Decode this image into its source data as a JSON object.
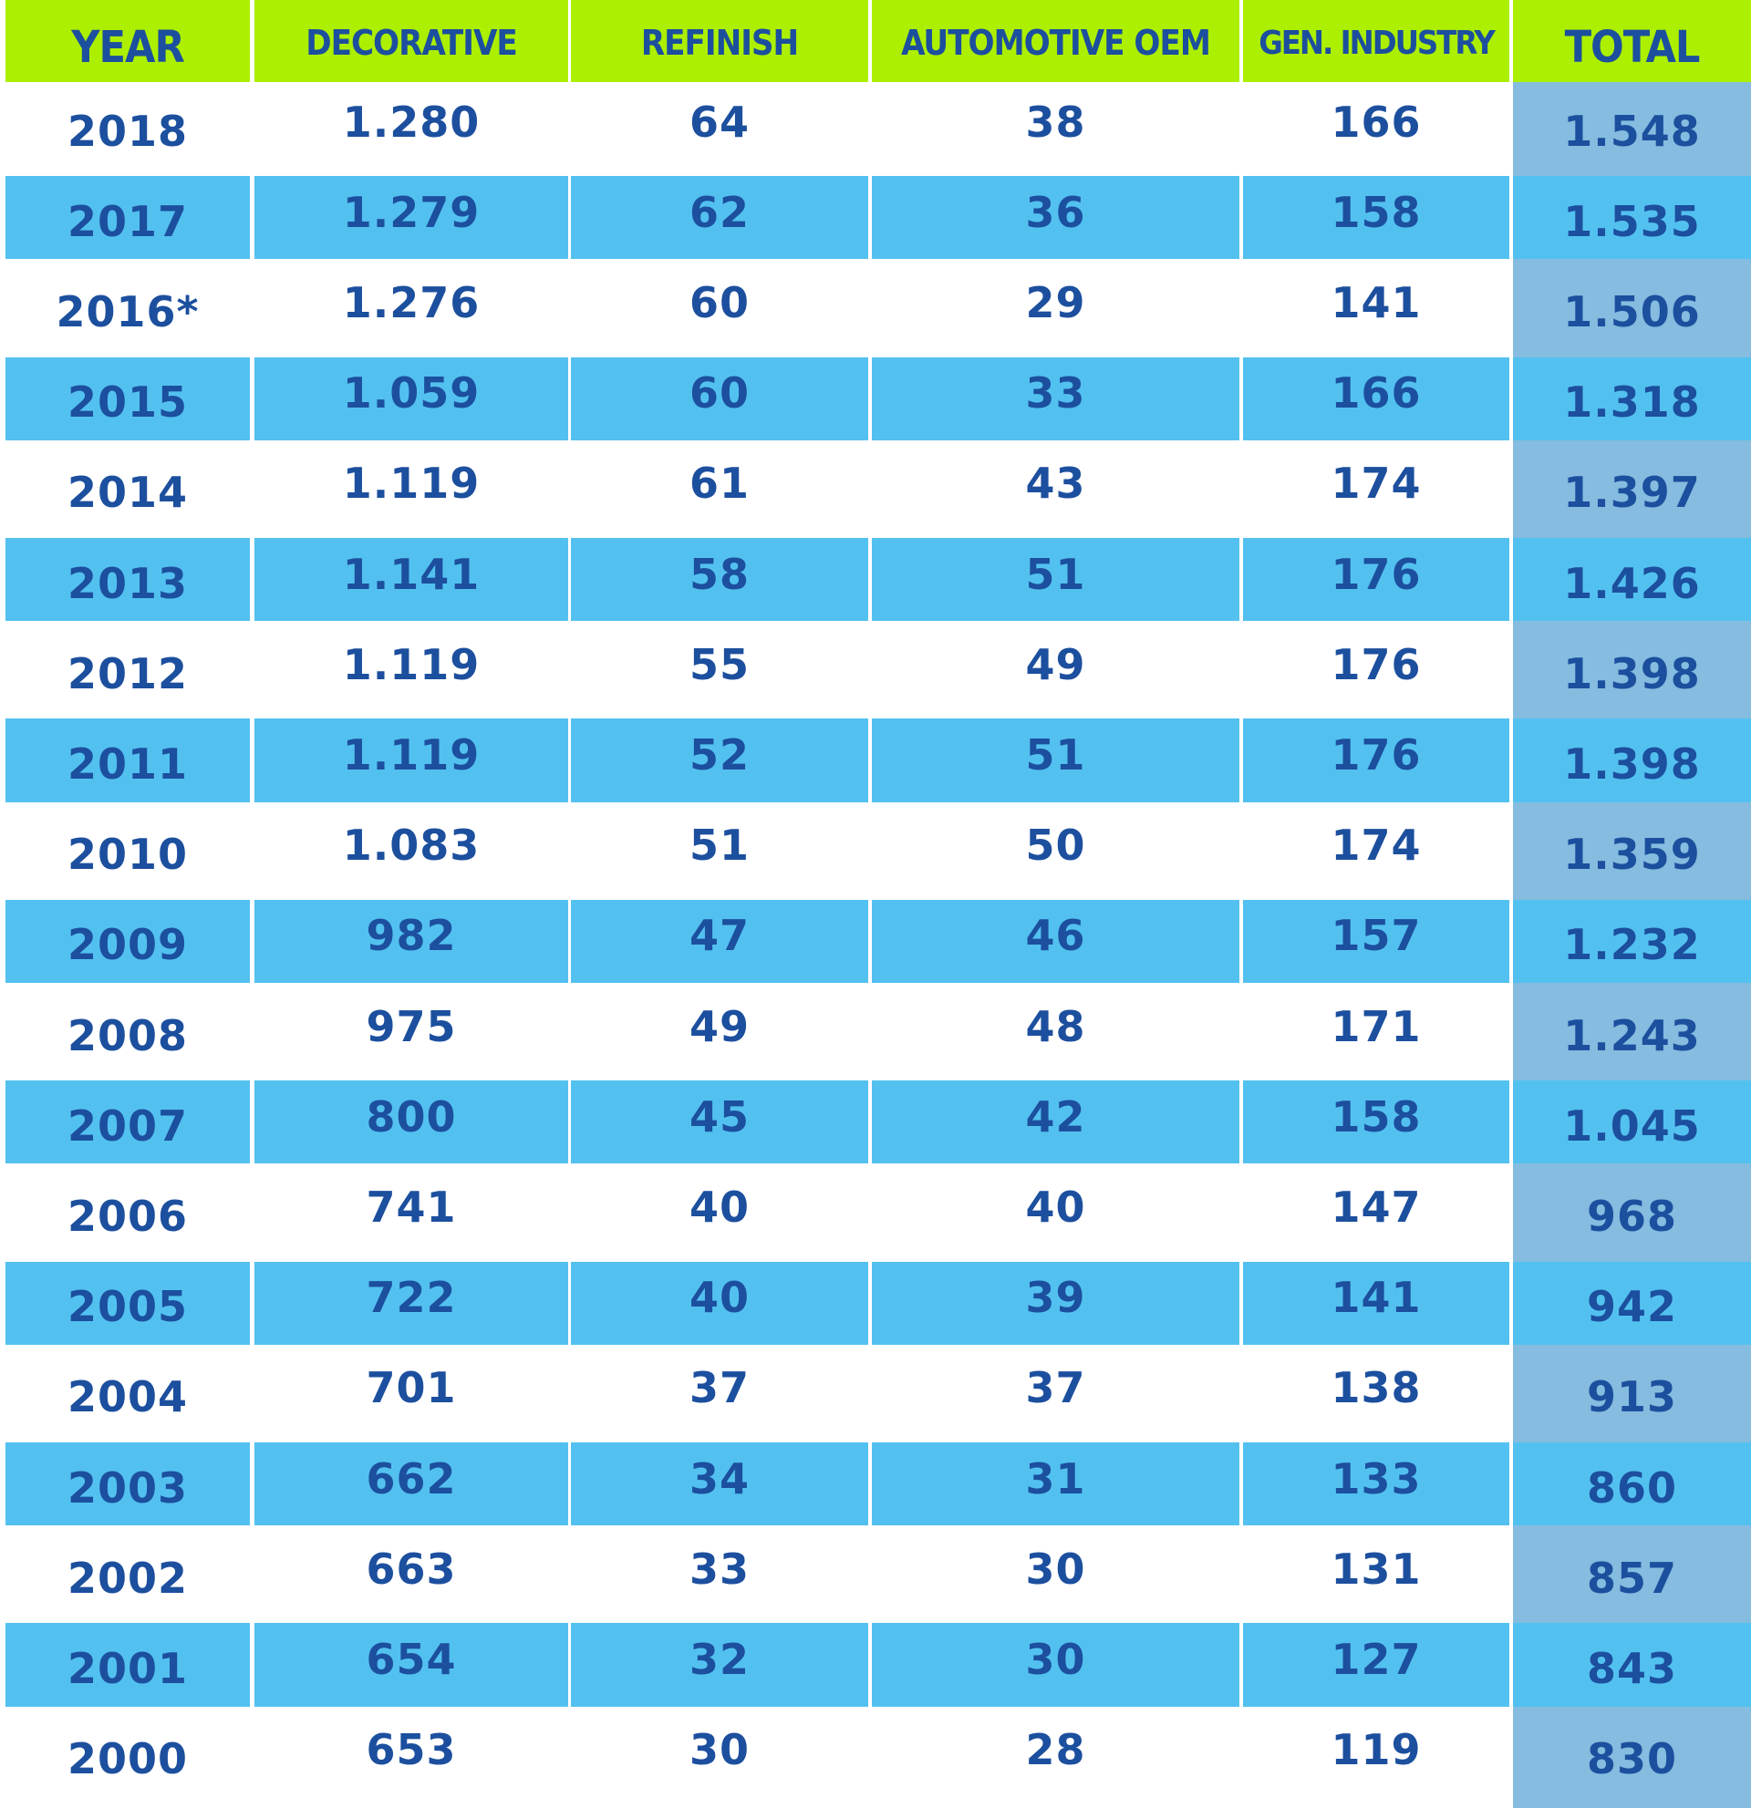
{
  "chart_data": {
    "type": "table",
    "columns": [
      "YEAR",
      "DECORATIVE",
      "REFINISH",
      "AUTOMOTIVE OEM",
      "GEN. INDUSTRY",
      "TOTAL"
    ],
    "rows": [
      [
        "2018",
        "1.280",
        "64",
        "38",
        "166",
        "1.548"
      ],
      [
        "2017",
        "1.279",
        "62",
        "36",
        "158",
        "1.535"
      ],
      [
        "2016*",
        "1.276",
        "60",
        "29",
        "141",
        "1.506"
      ],
      [
        "2015",
        "1.059",
        "60",
        "33",
        "166",
        "1.318"
      ],
      [
        "2014",
        "1.119",
        "61",
        "43",
        "174",
        "1.397"
      ],
      [
        "2013",
        "1.141",
        "58",
        "51",
        "176",
        "1.426"
      ],
      [
        "2012",
        "1.119",
        "55",
        "49",
        "176",
        "1.398"
      ],
      [
        "2011",
        "1.119",
        "52",
        "51",
        "176",
        "1.398"
      ],
      [
        "2010",
        "1.083",
        "51",
        "50",
        "174",
        "1.359"
      ],
      [
        "2009",
        "982",
        "47",
        "46",
        "157",
        "1.232"
      ],
      [
        "2008",
        "975",
        "49",
        "48",
        "171",
        "1.243"
      ],
      [
        "2007",
        "800",
        "45",
        "42",
        "158",
        "1.045"
      ],
      [
        "2006",
        "741",
        "40",
        "40",
        "147",
        "968"
      ],
      [
        "2005",
        "722",
        "40",
        "39",
        "141",
        "942"
      ],
      [
        "2004",
        "701",
        "37",
        "37",
        "138",
        "913"
      ],
      [
        "2003",
        "662",
        "34",
        "31",
        "133",
        "860"
      ],
      [
        "2002",
        "663",
        "33",
        "30",
        "131",
        "857"
      ],
      [
        "2001",
        "654",
        "32",
        "30",
        "127",
        "843"
      ],
      [
        "2000",
        "653",
        "30",
        "28",
        "119",
        "830"
      ]
    ]
  },
  "colors": {
    "header_background": "#acef00",
    "band_background": "#53c1f0",
    "total_column_background": "#85bcdf",
    "text": "#1c4f9e"
  }
}
